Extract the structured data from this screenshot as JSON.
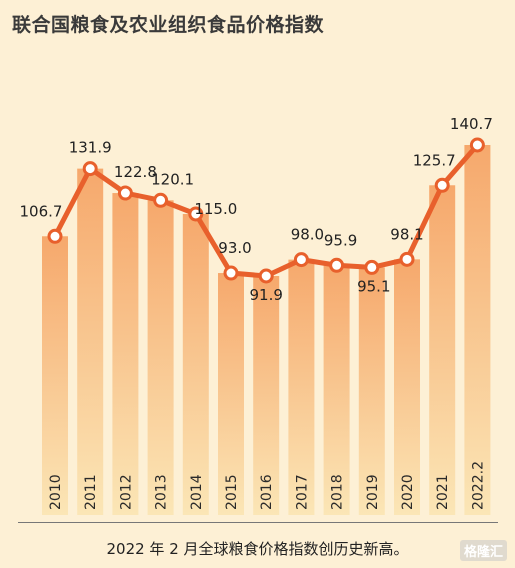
{
  "title": "联合国粮食及农业组织食品价格指数",
  "caption": "2022 年 2 月全球粮食价格指数创历史新高。",
  "watermark": "格隆汇",
  "colors": {
    "background": "#fdf0d5",
    "line": "#e8602c",
    "bar_top": "#f6a86c",
    "bar_bottom": "#fbe6b6",
    "marker_fill": "#ffffff"
  },
  "chart_data": {
    "type": "line",
    "title": "联合国粮食及农业组织食品价格指数",
    "categories": [
      "2010",
      "2011",
      "2012",
      "2013",
      "2014",
      "2015",
      "2016",
      "2017",
      "2018",
      "2019",
      "2020",
      "2021",
      "2022.2"
    ],
    "values": [
      106.7,
      131.9,
      122.8,
      120.1,
      115.0,
      93.0,
      91.9,
      98.0,
      95.9,
      95.1,
      98.1,
      125.7,
      140.7
    ],
    "value_labels": [
      "106.7",
      "131.9",
      "122.8",
      "120.1",
      "115.0",
      "93.0",
      "91.9",
      "98.0",
      "95.9",
      "95.1",
      "98.1",
      "125.7",
      "140.7"
    ],
    "xlabel": "",
    "ylabel": "",
    "grid": false,
    "legend": "none",
    "background_bars": true
  }
}
